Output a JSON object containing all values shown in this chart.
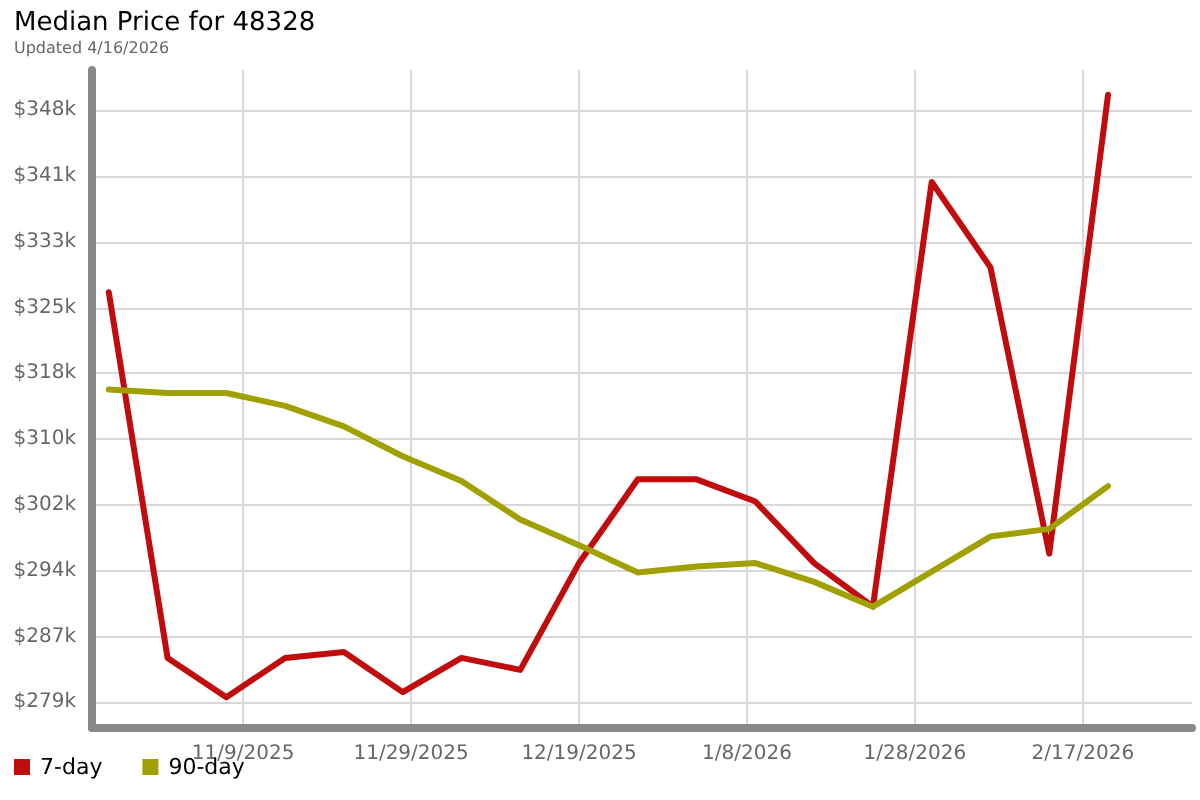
{
  "chart_data": {
    "type": "line",
    "title": "Median Price for 48328",
    "subtitle": "Updated 4/16/2026",
    "x": [
      "2025-10-24",
      "2025-10-31",
      "2025-11-07",
      "2025-11-14",
      "2025-11-21",
      "2025-11-28",
      "2025-12-05",
      "2025-12-12",
      "2025-12-19",
      "2025-12-26",
      "2026-01-02",
      "2026-01-09",
      "2026-01-16",
      "2026-01-23",
      "2026-01-30",
      "2026-02-06",
      "2026-02-13",
      "2026-02-20"
    ],
    "series": [
      {
        "name": "7-day",
        "color": "#c00c0c",
        "values": [
          327.0,
          284.2,
          279.6,
          284.2,
          284.9,
          280.2,
          284.2,
          282.8,
          295.3,
          305.1,
          305.1,
          302.5,
          295.3,
          290.2,
          339.9,
          329.9,
          296.4,
          350.1
        ]
      },
      {
        "name": "90-day",
        "color": "#a0a000",
        "values": [
          315.6,
          315.2,
          315.2,
          313.7,
          311.3,
          307.8,
          304.9,
          300.4,
          297.4,
          294.2,
          294.9,
          295.3,
          293.1,
          290.2,
          294.3,
          298.4,
          299.3,
          304.3
        ]
      }
    ],
    "xlim": [
      "2025-10-22",
      "2026-03-02"
    ],
    "xticks": [
      {
        "value": "2025-11-09",
        "label": "11/9/2025"
      },
      {
        "value": "2025-11-29",
        "label": "11/29/2025"
      },
      {
        "value": "2025-12-19",
        "label": "12/19/2025"
      },
      {
        "value": "2026-01-08",
        "label": "1/8/2026"
      },
      {
        "value": "2026-01-28",
        "label": "1/28/2026"
      },
      {
        "value": "2026-02-17",
        "label": "2/17/2026"
      }
    ],
    "ylim": [
      276,
      353
    ],
    "yticks": [
      {
        "value": 279,
        "label": "$279k"
      },
      {
        "value": 286.7,
        "label": "$287k"
      },
      {
        "value": 294.4,
        "label": "$294k"
      },
      {
        "value": 302.1,
        "label": "$302k"
      },
      {
        "value": 309.8,
        "label": "$310k"
      },
      {
        "value": 317.5,
        "label": "$318k"
      },
      {
        "value": 325.2,
        "label": "$325k"
      },
      {
        "value": 332.9,
        "label": "$333k"
      },
      {
        "value": 340.6,
        "label": "$341k"
      },
      {
        "value": 348.3,
        "label": "$348k"
      }
    ],
    "grid": true,
    "legend": "bottom left",
    "marker": "none",
    "line_style": "solid"
  }
}
